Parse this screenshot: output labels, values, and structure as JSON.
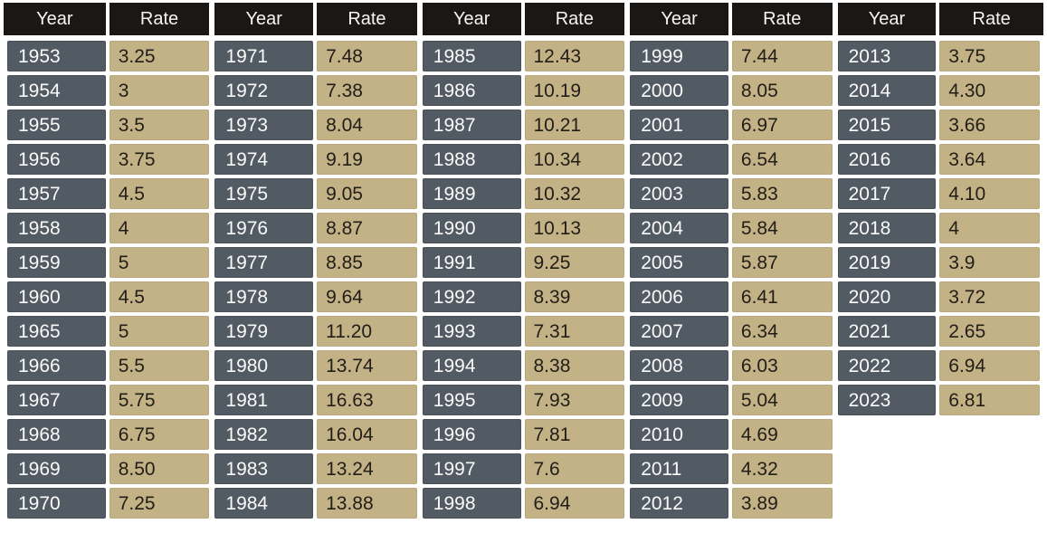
{
  "colors": {
    "header_bg": "#1b1714",
    "year_cell_bg": "#525a63",
    "rate_cell_bg": "#c4b287",
    "header_text": "#f7f5f2",
    "year_text": "#fafafa",
    "rate_text": "#211d17",
    "page_bg": "#ffffff"
  },
  "chart_data": {
    "type": "table",
    "header_labels": {
      "year": "Year",
      "rate": "Rate"
    },
    "layout": "5 side-by-side Year/Rate column groups, header repeated per group",
    "groups": [
      {
        "rows": [
          {
            "year": "1953",
            "rate": "3.25"
          },
          {
            "year": "1954",
            "rate": "3"
          },
          {
            "year": "1955",
            "rate": "3.5"
          },
          {
            "year": "1956",
            "rate": "3.75"
          },
          {
            "year": "1957",
            "rate": "4.5"
          },
          {
            "year": "1958",
            "rate": "4"
          },
          {
            "year": "1959",
            "rate": "5"
          },
          {
            "year": "1960",
            "rate": "4.5"
          },
          {
            "year": "1965",
            "rate": "5"
          },
          {
            "year": "1966",
            "rate": "5.5"
          },
          {
            "year": "1967",
            "rate": "5.75"
          },
          {
            "year": "1968",
            "rate": "6.75"
          },
          {
            "year": "1969",
            "rate": "8.50"
          },
          {
            "year": "1970",
            "rate": "7.25"
          }
        ]
      },
      {
        "rows": [
          {
            "year": "1971",
            "rate": "7.48"
          },
          {
            "year": "1972",
            "rate": "7.38"
          },
          {
            "year": "1973",
            "rate": "8.04"
          },
          {
            "year": "1974",
            "rate": "9.19"
          },
          {
            "year": "1975",
            "rate": "9.05"
          },
          {
            "year": "1976",
            "rate": "8.87"
          },
          {
            "year": "1977",
            "rate": "8.85"
          },
          {
            "year": "1978",
            "rate": "9.64"
          },
          {
            "year": "1979",
            "rate": "11.20"
          },
          {
            "year": "1980",
            "rate": "13.74"
          },
          {
            "year": "1981",
            "rate": "16.63"
          },
          {
            "year": "1982",
            "rate": "16.04"
          },
          {
            "year": "1983",
            "rate": "13.24"
          },
          {
            "year": "1984",
            "rate": "13.88"
          }
        ]
      },
      {
        "rows": [
          {
            "year": "1985",
            "rate": "12.43"
          },
          {
            "year": "1986",
            "rate": "10.19"
          },
          {
            "year": "1987",
            "rate": "10.21"
          },
          {
            "year": "1988",
            "rate": "10.34"
          },
          {
            "year": "1989",
            "rate": "10.32"
          },
          {
            "year": "1990",
            "rate": "10.13"
          },
          {
            "year": "1991",
            "rate": "9.25"
          },
          {
            "year": "1992",
            "rate": "8.39"
          },
          {
            "year": "1993",
            "rate": "7.31"
          },
          {
            "year": "1994",
            "rate": "8.38"
          },
          {
            "year": "1995",
            "rate": "7.93"
          },
          {
            "year": "1996",
            "rate": "7.81"
          },
          {
            "year": "1997",
            "rate": "7.6"
          },
          {
            "year": "1998",
            "rate": "6.94"
          }
        ]
      },
      {
        "rows": [
          {
            "year": "1999",
            "rate": "7.44"
          },
          {
            "year": "2000",
            "rate": "8.05"
          },
          {
            "year": "2001",
            "rate": "6.97"
          },
          {
            "year": "2002",
            "rate": "6.54"
          },
          {
            "year": "2003",
            "rate": "5.83"
          },
          {
            "year": "2004",
            "rate": "5.84"
          },
          {
            "year": "2005",
            "rate": "5.87"
          },
          {
            "year": "2006",
            "rate": "6.41"
          },
          {
            "year": "2007",
            "rate": "6.34"
          },
          {
            "year": "2008",
            "rate": "6.03"
          },
          {
            "year": "2009",
            "rate": "5.04"
          },
          {
            "year": "2010",
            "rate": "4.69"
          },
          {
            "year": "2011",
            "rate": "4.32"
          },
          {
            "year": "2012",
            "rate": "3.89"
          }
        ]
      },
      {
        "rows": [
          {
            "year": "2013",
            "rate": "3.75"
          },
          {
            "year": "2014",
            "rate": "4.30"
          },
          {
            "year": "2015",
            "rate": "3.66"
          },
          {
            "year": "2016",
            "rate": "3.64"
          },
          {
            "year": "2017",
            "rate": "4.10"
          },
          {
            "year": "2018",
            "rate": "4"
          },
          {
            "year": "2019",
            "rate": "3.9"
          },
          {
            "year": "2020",
            "rate": "3.72"
          },
          {
            "year": "2021",
            "rate": "2.65"
          },
          {
            "year": "2022",
            "rate": "6.94"
          },
          {
            "year": "2023",
            "rate": "6.81"
          }
        ]
      }
    ]
  }
}
